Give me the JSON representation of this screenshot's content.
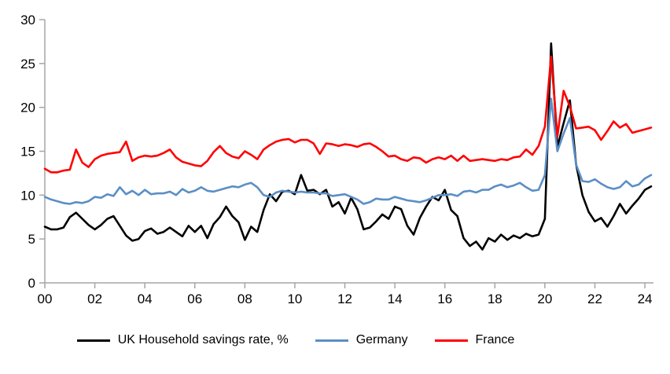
{
  "chart_data": {
    "type": "line",
    "title": "",
    "xlabel": "",
    "ylabel": "",
    "frequency": "quarterly",
    "start_year": 2000,
    "end_label": "2024 Q2",
    "ylim": [
      0,
      30
    ],
    "y_ticks": [
      0,
      5,
      10,
      15,
      20,
      25,
      30
    ],
    "x_ticks_years": [
      0,
      2,
      4,
      6,
      8,
      10,
      12,
      14,
      16,
      18,
      20,
      22,
      24
    ],
    "x_tick_labels": [
      "00",
      "02",
      "04",
      "06",
      "08",
      "10",
      "12",
      "14",
      "16",
      "18",
      "20",
      "22",
      "24"
    ],
    "grid": false,
    "legend_position": "bottom",
    "axis_color": "#a6a6a6",
    "tick_label_color": "#000000",
    "series": [
      {
        "name": "UK Household savings rate, %",
        "color": "#000000",
        "values": [
          6.4,
          6.1,
          6.1,
          6.3,
          7.5,
          8.0,
          7.3,
          6.6,
          6.1,
          6.6,
          7.3,
          7.6,
          6.5,
          5.4,
          4.8,
          5.0,
          5.9,
          6.2,
          5.6,
          5.8,
          6.3,
          5.8,
          5.3,
          6.5,
          5.8,
          6.5,
          5.1,
          6.7,
          7.5,
          8.7,
          7.6,
          6.9,
          4.9,
          6.4,
          5.8,
          8.3,
          10.1,
          9.3,
          10.4,
          10.5,
          10.1,
          12.3,
          10.5,
          10.6,
          10.1,
          10.6,
          8.7,
          9.2,
          7.9,
          9.7,
          8.4,
          6.1,
          6.3,
          7.0,
          7.8,
          7.3,
          8.7,
          8.4,
          6.5,
          5.5,
          7.4,
          8.7,
          9.8,
          9.4,
          10.6,
          8.3,
          7.6,
          5.1,
          4.2,
          4.7,
          3.8,
          5.1,
          4.7,
          5.5,
          4.9,
          5.4,
          5.1,
          5.6,
          5.3,
          5.5,
          7.3,
          27.3,
          15.5,
          18.2,
          20.8,
          13.5,
          10.0,
          8.1,
          7.0,
          7.4,
          6.4,
          7.6,
          9.0,
          7.9,
          8.8,
          9.6,
          10.6,
          11.0
        ]
      },
      {
        "name": "Germany",
        "color": "#5b8ec6",
        "values": [
          9.8,
          9.5,
          9.3,
          9.1,
          9.0,
          9.2,
          9.1,
          9.3,
          9.8,
          9.7,
          10.1,
          9.9,
          10.9,
          10.1,
          10.5,
          10.0,
          10.6,
          10.1,
          10.2,
          10.2,
          10.4,
          10.0,
          10.7,
          10.3,
          10.5,
          10.9,
          10.5,
          10.4,
          10.6,
          10.8,
          11.0,
          10.9,
          11.2,
          11.4,
          10.9,
          10.0,
          9.8,
          10.3,
          10.5,
          10.4,
          10.3,
          10.4,
          10.3,
          10.3,
          10.2,
          10.2,
          9.9,
          10.0,
          10.1,
          9.8,
          9.5,
          9.0,
          9.2,
          9.6,
          9.5,
          9.5,
          9.8,
          9.6,
          9.4,
          9.3,
          9.2,
          9.4,
          9.7,
          10.0,
          10.0,
          10.1,
          9.9,
          10.4,
          10.5,
          10.3,
          10.6,
          10.6,
          11.0,
          11.2,
          10.9,
          11.1,
          11.4,
          10.9,
          10.5,
          10.6,
          12.3,
          21.0,
          15.0,
          17.0,
          18.8,
          13.5,
          11.6,
          11.5,
          11.8,
          11.3,
          10.9,
          10.7,
          10.9,
          11.6,
          11.0,
          11.2,
          11.9,
          12.3
        ]
      },
      {
        "name": "France",
        "color": "#ff0000",
        "values": [
          13.0,
          12.6,
          12.6,
          12.8,
          12.9,
          15.2,
          13.7,
          13.2,
          14.1,
          14.5,
          14.7,
          14.8,
          14.9,
          16.1,
          13.9,
          14.3,
          14.5,
          14.4,
          14.5,
          14.8,
          15.2,
          14.3,
          13.8,
          13.6,
          13.4,
          13.3,
          13.9,
          14.9,
          15.6,
          14.8,
          14.4,
          14.2,
          15.0,
          14.6,
          14.1,
          15.2,
          15.7,
          16.1,
          16.3,
          16.4,
          16.0,
          16.3,
          16.3,
          15.9,
          14.7,
          15.9,
          15.8,
          15.6,
          15.8,
          15.7,
          15.5,
          15.8,
          15.9,
          15.5,
          15.0,
          14.4,
          14.5,
          14.1,
          13.9,
          14.3,
          14.2,
          13.7,
          14.1,
          14.3,
          14.1,
          14.5,
          13.9,
          14.5,
          13.9,
          14.0,
          14.1,
          14.0,
          13.9,
          14.1,
          14.0,
          14.3,
          14.4,
          15.2,
          14.6,
          15.6,
          17.8,
          25.8,
          16.7,
          21.9,
          20.1,
          17.6,
          17.7,
          17.8,
          17.4,
          16.3,
          17.3,
          18.4,
          17.7,
          18.1,
          17.1,
          17.3,
          17.5,
          17.7
        ]
      }
    ]
  },
  "legend": {
    "items": [
      {
        "label": "UK Household savings rate, %"
      },
      {
        "label": "Germany"
      },
      {
        "label": "France"
      }
    ]
  }
}
